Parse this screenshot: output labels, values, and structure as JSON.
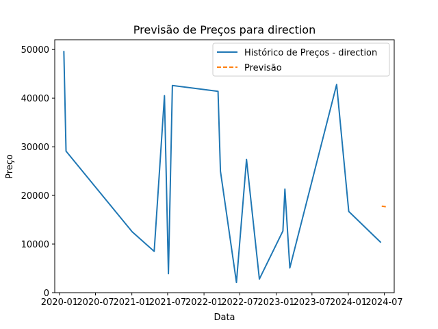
{
  "chart_data": {
    "type": "line",
    "title": "Previsão de Preços para direction",
    "xlabel": "Data",
    "ylabel": "Preço",
    "xlim": [
      "2019-12-08",
      "2024-08-20"
    ],
    "ylim": [
      0,
      52000
    ],
    "x_ticks": [
      "2020-01",
      "2020-07",
      "2021-01",
      "2021-07",
      "2022-01",
      "2022-07",
      "2023-01",
      "2023-07",
      "2024-01",
      "2024-07"
    ],
    "y_ticks": [
      0,
      10000,
      20000,
      30000,
      40000,
      50000
    ],
    "grid": false,
    "legend_position": "top-right",
    "series": [
      {
        "name": "Histórico de Preços - direction",
        "color": "#1f77b4",
        "style": "solid",
        "points": [
          {
            "x": "2020-01-23",
            "y": 49700
          },
          {
            "x": "2020-02-03",
            "y": 29100
          },
          {
            "x": "2021-01-03",
            "y": 12500
          },
          {
            "x": "2021-04-24",
            "y": 8500
          },
          {
            "x": "2021-06-15",
            "y": 40500
          },
          {
            "x": "2021-07-05",
            "y": 3900
          },
          {
            "x": "2021-07-25",
            "y": 42600
          },
          {
            "x": "2022-03-13",
            "y": 41400
          },
          {
            "x": "2022-03-25",
            "y": 25000
          },
          {
            "x": "2022-06-14",
            "y": 2100
          },
          {
            "x": "2022-08-04",
            "y": 27400
          },
          {
            "x": "2022-10-08",
            "y": 2800
          },
          {
            "x": "2023-02-04",
            "y": 12700
          },
          {
            "x": "2023-02-14",
            "y": 21300
          },
          {
            "x": "2023-03-11",
            "y": 5100
          },
          {
            "x": "2023-11-03",
            "y": 42800
          },
          {
            "x": "2024-01-03",
            "y": 16700
          },
          {
            "x": "2024-06-14",
            "y": 10300
          }
        ]
      },
      {
        "name": "Previsão",
        "color": "#ff7f0e",
        "style": "dashed",
        "points": [
          {
            "x": "2024-06-18",
            "y": 17800
          },
          {
            "x": "2024-07-12",
            "y": 17650
          }
        ]
      }
    ]
  }
}
